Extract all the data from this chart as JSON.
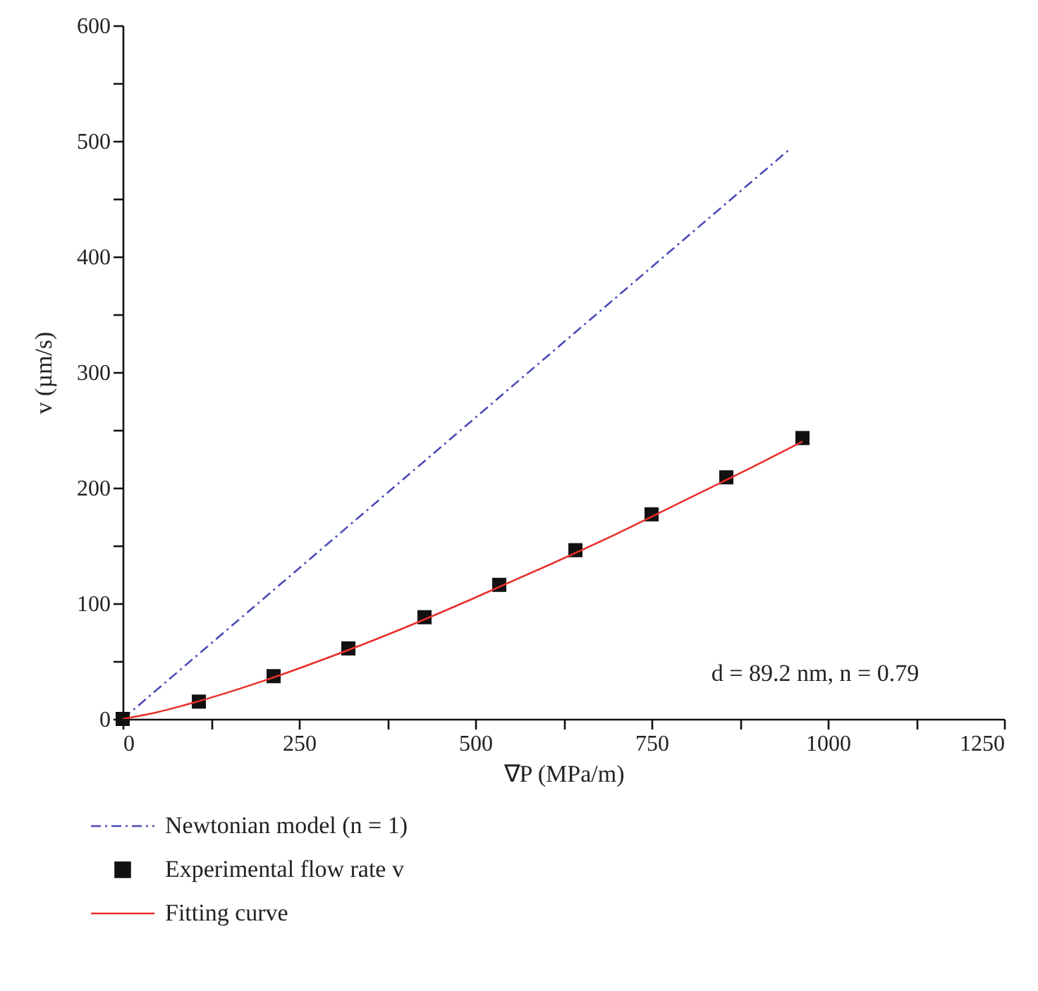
{
  "chart_data": {
    "type": "line",
    "xlabel": "∇P (MPa/m)",
    "ylabel": "v (µm/s)",
    "xlim": [
      0,
      1250
    ],
    "xticks": [
      0,
      {
        "value": 125,
        "label": null
      },
      250,
      {
        "value": 375,
        "label": null
      },
      500,
      {
        "value": 625,
        "label": null
      },
      750,
      {
        "value": 875,
        "label": null
      },
      1000,
      {
        "value": 1125,
        "label": null
      },
      1250
    ],
    "ylim": [
      0,
      600
    ],
    "yticks": [
      0,
      {
        "value": 50,
        "label": null
      },
      100,
      {
        "value": 150,
        "label": null
      },
      200,
      {
        "value": 250,
        "label": null
      },
      300,
      {
        "value": 350,
        "label": null
      },
      400,
      {
        "value": 450,
        "label": null
      },
      500,
      {
        "value": 550,
        "label": null
      },
      600
    ],
    "grid": false,
    "legend": "bottom",
    "annotations": [
      "d = 89.2 nm, n = 0.79"
    ],
    "series": [
      {
        "name": "Newtonian model (n = 1)",
        "type": "line",
        "color": "#4a4ab8",
        "line_style": "dashed",
        "x": [
          0,
          946
        ],
        "values": [
          0,
          493
        ]
      },
      {
        "name": "Experimental flow rate v",
        "type": "scatter",
        "color": "#111111",
        "marker": "square",
        "x": [
          0,
          108,
          214,
          320,
          428,
          534,
          642,
          750,
          856,
          964
        ],
        "values": [
          0,
          15,
          37,
          61,
          88,
          116,
          146,
          177,
          209,
          243
        ]
      },
      {
        "name": "Fitting curve",
        "type": "line",
        "color": "#e8302a",
        "line_style": "solid",
        "x": [
          0,
          50,
          100,
          200,
          300,
          400,
          500,
          600,
          700,
          800,
          900,
          964
        ],
        "values": [
          0,
          6,
          14,
          33,
          55,
          79,
          105,
          132,
          160,
          190,
          220,
          240
        ]
      }
    ]
  }
}
